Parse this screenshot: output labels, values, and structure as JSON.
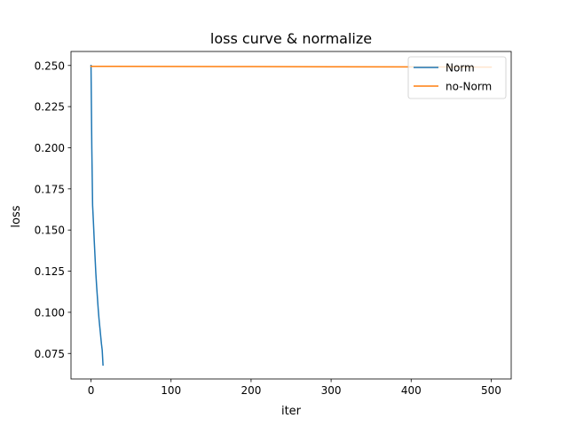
{
  "chart_data": {
    "type": "line",
    "title": "loss curve & normalize",
    "xlabel": "iter",
    "ylabel": "loss",
    "xlim": [
      -25,
      525
    ],
    "ylim": [
      0.0595,
      0.2585
    ],
    "xticks": [
      0,
      100,
      200,
      300,
      400,
      500
    ],
    "xtick_labels": [
      "0",
      "100",
      "200",
      "300",
      "400",
      "500"
    ],
    "yticks": [
      0.075,
      0.1,
      0.125,
      0.15,
      0.175,
      0.2,
      0.225,
      0.25
    ],
    "ytick_labels": [
      "0.075",
      "0.100",
      "0.125",
      "0.150",
      "0.175",
      "0.200",
      "0.225",
      "0.250"
    ],
    "grid": false,
    "legend_position": "upper-right",
    "series": [
      {
        "name": "Norm",
        "color": "#1f77b4",
        "x": [
          0,
          1,
          2,
          3,
          4,
          5,
          6,
          7,
          8,
          9,
          10,
          11,
          12,
          13,
          14,
          15
        ],
        "y": [
          0.25,
          0.2,
          0.165,
          0.155,
          0.144,
          0.134,
          0.124,
          0.116,
          0.109,
          0.102,
          0.096,
          0.091,
          0.086,
          0.081,
          0.077,
          0.068
        ]
      },
      {
        "name": "no-Norm",
        "color": "#ff7f0e",
        "x": [
          0,
          100,
          200,
          300,
          400,
          500
        ],
        "y": [
          0.2495,
          0.2494,
          0.2493,
          0.2492,
          0.2491,
          0.249
        ]
      }
    ]
  }
}
